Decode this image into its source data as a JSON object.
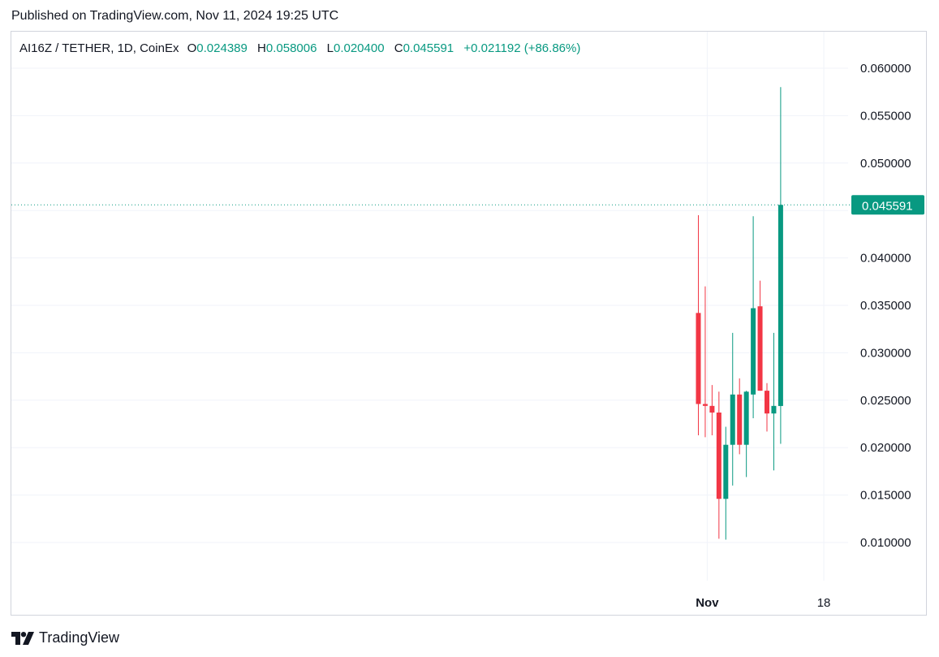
{
  "header": {
    "published": "Published on TradingView.com, Nov 11, 2024 19:25 UTC"
  },
  "legend": {
    "symbol": "AI16Z / TETHER, 1D, CoinEx",
    "open_label": "O",
    "open": "0.024389",
    "high_label": "H",
    "high": "0.058006",
    "low_label": "L",
    "low": "0.020400",
    "close_label": "C",
    "close": "0.045591",
    "change": "+0.021192 (+86.86%)"
  },
  "footer": {
    "brand": "TradingView"
  },
  "colors": {
    "up": "#089981",
    "down": "#f23645",
    "grid": "#f0f3fa",
    "axis_text": "#131722",
    "last_price_bg": "#089981"
  },
  "chart_data": {
    "type": "candlestick",
    "y_ticks": [
      "0.010000",
      "0.015000",
      "0.020000",
      "0.025000",
      "0.030000",
      "0.035000",
      "0.040000",
      "0.045000",
      "0.050000",
      "0.055000",
      "0.060000"
    ],
    "ylim": [
      0.0065,
      0.0645
    ],
    "x_ticks": [
      {
        "label": "Nov",
        "bar_index": 2,
        "bold": true
      },
      {
        "label": "18",
        "bar_index": 19,
        "bold": false
      }
    ],
    "last_price": "0.045591",
    "last_price_value": 0.045591,
    "candles": [
      {
        "o": 0.0342,
        "h": 0.0445,
        "l": 0.0213,
        "c": 0.0246
      },
      {
        "o": 0.0246,
        "h": 0.037,
        "l": 0.0211,
        "c": 0.0244
      },
      {
        "o": 0.0244,
        "h": 0.0266,
        "l": 0.0213,
        "c": 0.0237
      },
      {
        "o": 0.0237,
        "h": 0.0259,
        "l": 0.0104,
        "c": 0.0146
      },
      {
        "o": 0.0146,
        "h": 0.0222,
        "l": 0.0103,
        "c": 0.0203
      },
      {
        "o": 0.0203,
        "h": 0.0321,
        "l": 0.016,
        "c": 0.0256
      },
      {
        "o": 0.0256,
        "h": 0.0273,
        "l": 0.0193,
        "c": 0.0203
      },
      {
        "o": 0.0203,
        "h": 0.026,
        "l": 0.0169,
        "c": 0.0259
      },
      {
        "o": 0.0256,
        "h": 0.0444,
        "l": 0.0231,
        "c": 0.0347
      },
      {
        "o": 0.0349,
        "h": 0.0376,
        "l": 0.026,
        "c": 0.026
      },
      {
        "o": 0.026,
        "h": 0.0268,
        "l": 0.0217,
        "c": 0.0236
      },
      {
        "o": 0.0236,
        "h": 0.0321,
        "l": 0.0176,
        "c": 0.0244
      },
      {
        "o": 0.024389,
        "h": 0.058006,
        "l": 0.0204,
        "c": 0.045591
      }
    ]
  }
}
